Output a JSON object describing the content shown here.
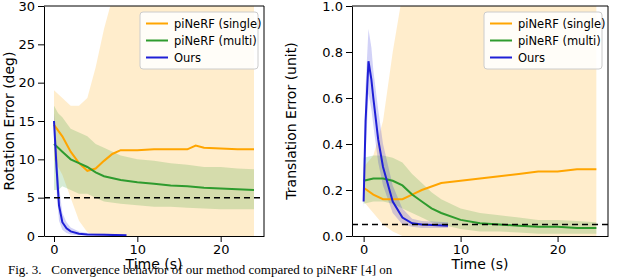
{
  "chart_data": [
    {
      "type": "line",
      "x_label": "Time (s)",
      "y_label": "Rotation Error (deg)",
      "xlim": [
        -1.2,
        25.2
      ],
      "xticks": [
        0,
        10,
        20
      ],
      "ylim": [
        0,
        30
      ],
      "yticks": [
        0,
        5,
        10,
        15,
        20,
        25,
        30
      ],
      "legend": "upper right",
      "grid": false,
      "series": [
        {
          "name": "piNeRF (single)",
          "color": "#ffa500",
          "line_style": "solid",
          "x": [
            0,
            1,
            2,
            3,
            4,
            5,
            6,
            7,
            8,
            10,
            12,
            14,
            16,
            17,
            18,
            20,
            22,
            24
          ],
          "values": [
            14.5,
            13,
            11,
            9.5,
            8.5,
            8.8,
            9.8,
            10.7,
            11.2,
            11.2,
            11.3,
            11.3,
            11.3,
            11.8,
            11.5,
            11.4,
            11.3,
            11.3
          ],
          "lower": [
            10,
            8,
            5,
            2,
            0.5,
            0,
            0,
            0,
            0,
            0,
            0,
            0,
            0,
            0,
            0,
            0,
            0,
            0
          ],
          "upper": [
            19,
            18,
            17,
            17,
            18,
            22,
            27,
            31,
            33,
            33,
            33,
            33,
            33,
            33,
            33,
            33,
            33,
            33
          ]
        },
        {
          "name": "piNeRF (multi)",
          "color": "#2e9b2e",
          "line_style": "solid",
          "x": [
            0,
            0.5,
            1,
            2,
            3,
            4,
            5,
            6,
            8,
            10,
            12,
            14,
            16,
            18,
            20,
            22,
            24
          ],
          "values": [
            12,
            11.5,
            11,
            10,
            9.5,
            9,
            8.3,
            7.8,
            7.3,
            7,
            6.8,
            6.6,
            6.5,
            6.3,
            6.2,
            6.1,
            6
          ],
          "lower": [
            6,
            6,
            6.5,
            6,
            5.5,
            5.5,
            5,
            4.5,
            4.2,
            4,
            3.8,
            3.8,
            3.7,
            3.6,
            3.5,
            3.5,
            3.5
          ],
          "upper": [
            17,
            16,
            15.5,
            14,
            13.5,
            13,
            12,
            11.5,
            10.5,
            10,
            9.8,
            9.5,
            9.3,
            9,
            9,
            8.8,
            8.7
          ]
        },
        {
          "name": "Ours",
          "color": "#1f1fd6",
          "line_style": "solid",
          "x": [
            0,
            0.3,
            0.6,
            1,
            1.5,
            2,
            3,
            4,
            6,
            8.7
          ],
          "values": [
            15,
            9,
            4,
            1.8,
            1,
            0.6,
            0.3,
            0.2,
            0.15,
            0.1
          ],
          "lower": [
            14,
            6,
            2,
            0.8,
            0.4,
            0.2,
            0.1,
            0.05,
            0.05,
            0.05
          ],
          "upper": [
            16,
            12,
            6.5,
            3,
            1.8,
            1.1,
            0.6,
            0.4,
            0.3,
            0.2
          ]
        },
        {
          "color": "#000000",
          "line_style": "dashed",
          "x": [
            -1.2,
            25.2
          ],
          "values": [
            5,
            5
          ]
        }
      ]
    },
    {
      "type": "line",
      "x_label": "Time (s)",
      "y_label": "Translation Error (unit)",
      "xlim": [
        -1.2,
        25.2
      ],
      "xticks": [
        0,
        10,
        20
      ],
      "ylim": [
        0,
        1.0
      ],
      "yticks": [
        {
          "value": 0,
          "label": "0.0"
        },
        0.2,
        0.4,
        0.6,
        0.8,
        {
          "value": 1.0,
          "label": "1.0"
        }
      ],
      "legend": "upper right",
      "grid": false,
      "series": [
        {
          "name": "piNeRF (single)",
          "color": "#ffa500",
          "line_style": "solid",
          "x": [
            0,
            1,
            2,
            3,
            4,
            5,
            6,
            8,
            10,
            12,
            14,
            16,
            18,
            20,
            22,
            24
          ],
          "values": [
            0.21,
            0.18,
            0.16,
            0.16,
            0.16,
            0.18,
            0.2,
            0.23,
            0.24,
            0.25,
            0.26,
            0.27,
            0.28,
            0.28,
            0.29,
            0.29
          ],
          "lower": [
            0.15,
            0.1,
            0.05,
            0.02,
            0,
            0,
            0,
            0,
            0,
            0,
            0,
            0,
            0,
            0,
            0,
            0
          ],
          "upper": [
            0.3,
            0.35,
            0.5,
            0.8,
            1.05,
            1.1,
            1.1,
            1.1,
            1.1,
            1.1,
            1.1,
            1.1,
            1.1,
            1.1,
            1.1,
            1.1
          ]
        },
        {
          "name": "piNeRF (multi)",
          "color": "#2e9b2e",
          "line_style": "solid",
          "x": [
            0,
            1,
            2,
            3,
            4,
            5,
            6,
            7,
            8,
            10,
            12,
            14,
            16,
            18,
            20,
            22,
            24
          ],
          "values": [
            0.24,
            0.25,
            0.25,
            0.24,
            0.22,
            0.18,
            0.15,
            0.12,
            0.1,
            0.07,
            0.055,
            0.05,
            0.045,
            0.04,
            0.04,
            0.035,
            0.035
          ],
          "lower": [
            0.14,
            0.15,
            0.15,
            0.14,
            0.12,
            0.1,
            0.08,
            0.06,
            0.05,
            0.03,
            0.02,
            0.02,
            0.015,
            0.01,
            0.01,
            0.01,
            0.01
          ],
          "upper": [
            0.34,
            0.35,
            0.35,
            0.34,
            0.32,
            0.27,
            0.23,
            0.19,
            0.16,
            0.12,
            0.1,
            0.09,
            0.08,
            0.07,
            0.07,
            0.065,
            0.06
          ]
        },
        {
          "name": "Ours",
          "color": "#1f1fd6",
          "line_style": "solid",
          "x": [
            0,
            0.2,
            0.5,
            0.8,
            1,
            1.5,
            2,
            3,
            4,
            5,
            6,
            8.7
          ],
          "values": [
            0.15,
            0.5,
            0.76,
            0.68,
            0.6,
            0.42,
            0.3,
            0.15,
            0.08,
            0.055,
            0.05,
            0.045
          ],
          "lower": [
            0.12,
            0.35,
            0.62,
            0.55,
            0.48,
            0.32,
            0.22,
            0.1,
            0.05,
            0.04,
            0.035,
            0.035
          ],
          "upper": [
            0.18,
            0.65,
            0.9,
            0.82,
            0.72,
            0.55,
            0.4,
            0.22,
            0.12,
            0.075,
            0.065,
            0.06
          ]
        },
        {
          "color": "#000000",
          "line_style": "dashed",
          "x": [
            -1.2,
            25.2
          ],
          "values": [
            0.05,
            0.05
          ]
        }
      ]
    }
  ],
  "caption": "Fig. 3.   Convergence behavior of our method compared to piNeRF [4] on"
}
